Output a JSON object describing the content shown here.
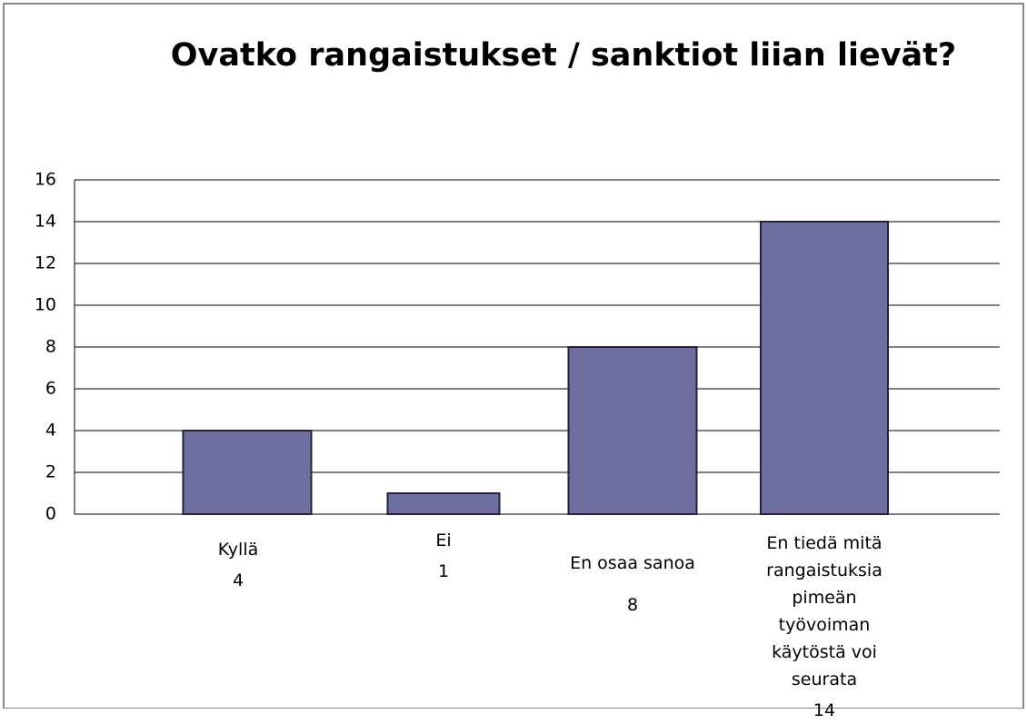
{
  "chart_data": {
    "type": "bar",
    "title": "Ovatko rangaistukset / sanktiot liian lievät?",
    "categories": [
      "Kyllä",
      "Ei",
      "En osaa sanoa",
      "En tiedä mitä rangaistuksia pimeän työvoiman käytöstä voi seurata"
    ],
    "values": [
      4,
      1,
      8,
      14
    ],
    "color": "#6f6f9f",
    "ylim": [
      0,
      16
    ],
    "yticks": [
      0,
      2,
      4,
      6,
      8,
      10,
      12,
      14,
      16
    ],
    "grid": true
  }
}
